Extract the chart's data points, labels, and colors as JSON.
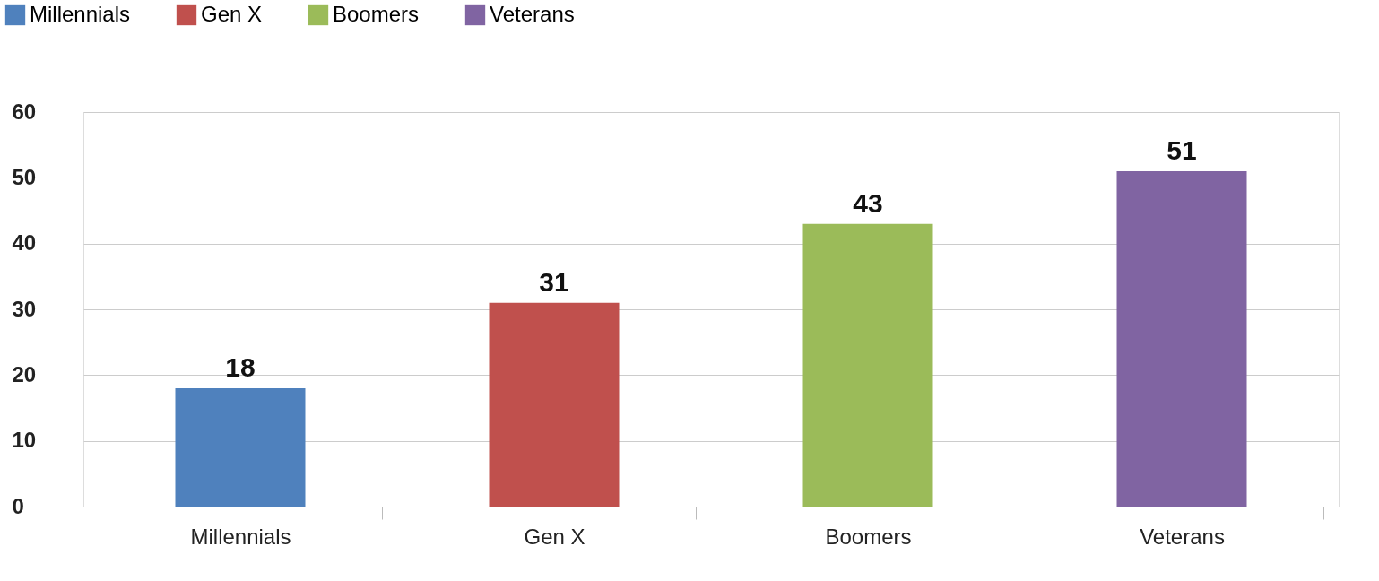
{
  "chart_data": {
    "type": "bar",
    "categories": [
      "Millennials",
      "Gen X",
      "Boomers",
      "Veterans"
    ],
    "series": [
      {
        "name": "Millennials",
        "color": "#4f81bd",
        "values": [
          18,
          null,
          null,
          null
        ]
      },
      {
        "name": "Gen X",
        "color": "#c0504d",
        "values": [
          null,
          31,
          null,
          null
        ]
      },
      {
        "name": "Boomers",
        "color": "#9bbb59",
        "values": [
          null,
          null,
          43,
          null
        ]
      },
      {
        "name": "Veterans",
        "color": "#8064a2",
        "values": [
          null,
          null,
          null,
          51
        ]
      }
    ],
    "stacked": true,
    "ylim": [
      0,
      60
    ],
    "yticks": [
      0,
      10,
      20,
      30,
      40,
      50,
      60
    ],
    "grid": "y",
    "legend": "top left",
    "data_labels": true
  }
}
